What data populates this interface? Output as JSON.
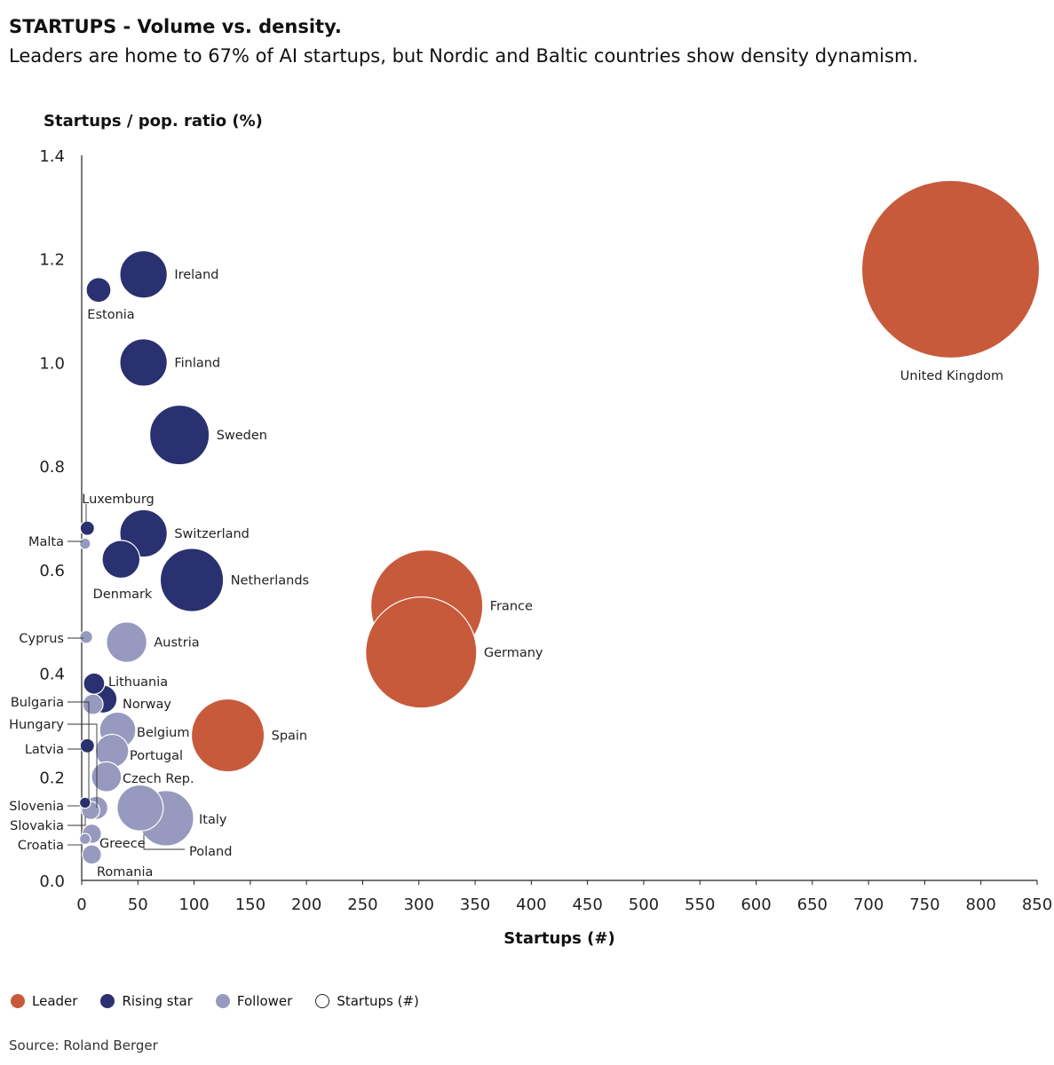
{
  "title": "STARTUPS - Volume vs. density.",
  "subtitle": "Leaders are home to 67% of AI startups, but Nordic and Baltic countries show density dynamism.",
  "source": "Source: Roland Berger",
  "colors": {
    "leader": "#c85a3c",
    "rising": "#2a3170",
    "follower": "#9799be"
  },
  "legend": [
    {
      "label": "Leader",
      "key": "leader"
    },
    {
      "label": "Rising star",
      "key": "rising"
    },
    {
      "label": "Follower",
      "key": "follower"
    },
    {
      "label": "Startups (#)",
      "key": "size"
    }
  ],
  "chart_data": {
    "type": "scatter",
    "bubble": true,
    "xlabel": "Startups (#)",
    "ylabel": "Startups / pop. ratio (%)",
    "xlim": [
      0,
      850
    ],
    "ylim": [
      0,
      1.4
    ],
    "xticks": [
      0,
      50,
      100,
      150,
      200,
      250,
      300,
      350,
      400,
      450,
      500,
      550,
      600,
      650,
      700,
      750,
      800,
      850
    ],
    "yticks": [
      0.0,
      0.2,
      0.4,
      0.6,
      0.8,
      1.0,
      1.2,
      1.4
    ],
    "points": [
      {
        "name": "United Kingdom",
        "x": 773,
        "y": 1.18,
        "group": "leader"
      },
      {
        "name": "France",
        "x": 307,
        "y": 0.53,
        "group": "leader"
      },
      {
        "name": "Germany",
        "x": 302,
        "y": 0.44,
        "group": "leader"
      },
      {
        "name": "Spain",
        "x": 130,
        "y": 0.28,
        "group": "leader"
      },
      {
        "name": "Ireland",
        "x": 55,
        "y": 1.17,
        "group": "rising"
      },
      {
        "name": "Estonia",
        "x": 15,
        "y": 1.14,
        "group": "rising"
      },
      {
        "name": "Finland",
        "x": 55,
        "y": 1.0,
        "group": "rising"
      },
      {
        "name": "Sweden",
        "x": 87,
        "y": 0.86,
        "group": "rising"
      },
      {
        "name": "Luxemburg",
        "x": 5,
        "y": 0.68,
        "group": "rising"
      },
      {
        "name": "Switzerland",
        "x": 55,
        "y": 0.67,
        "group": "rising"
      },
      {
        "name": "Denmark",
        "x": 35,
        "y": 0.62,
        "group": "rising"
      },
      {
        "name": "Netherlands",
        "x": 98,
        "y": 0.58,
        "group": "rising"
      },
      {
        "name": "Lithuania",
        "x": 11,
        "y": 0.38,
        "group": "rising"
      },
      {
        "name": "Norway",
        "x": 19,
        "y": 0.35,
        "group": "rising"
      },
      {
        "name": "Latvia",
        "x": 5,
        "y": 0.26,
        "group": "rising"
      },
      {
        "name": "Slovenia",
        "x": 3,
        "y": 0.15,
        "group": "rising"
      },
      {
        "name": "Malta",
        "x": 3,
        "y": 0.65,
        "group": "follower"
      },
      {
        "name": "Cyprus",
        "x": 4,
        "y": 0.47,
        "group": "follower"
      },
      {
        "name": "Austria",
        "x": 40,
        "y": 0.46,
        "group": "follower"
      },
      {
        "name": "Bulgaria",
        "x": 10,
        "y": 0.34,
        "group": "follower"
      },
      {
        "name": "Hungary",
        "x": 13,
        "y": 0.14,
        "group": "follower"
      },
      {
        "name": "Belgium",
        "x": 32,
        "y": 0.29,
        "group": "follower"
      },
      {
        "name": "Portugal",
        "x": 27,
        "y": 0.25,
        "group": "follower"
      },
      {
        "name": "Czech Rep.",
        "x": 22,
        "y": 0.2,
        "group": "follower"
      },
      {
        "name": "Italy",
        "x": 75,
        "y": 0.12,
        "group": "follower"
      },
      {
        "name": "Poland",
        "x": 52,
        "y": 0.14,
        "group": "follower"
      },
      {
        "name": "Slovakia",
        "x": 8,
        "y": 0.135,
        "group": "follower"
      },
      {
        "name": "Greece",
        "x": 9,
        "y": 0.09,
        "group": "follower"
      },
      {
        "name": "Croatia",
        "x": 3,
        "y": 0.08,
        "group": "follower"
      },
      {
        "name": "Romania",
        "x": 9,
        "y": 0.05,
        "group": "follower"
      }
    ]
  }
}
